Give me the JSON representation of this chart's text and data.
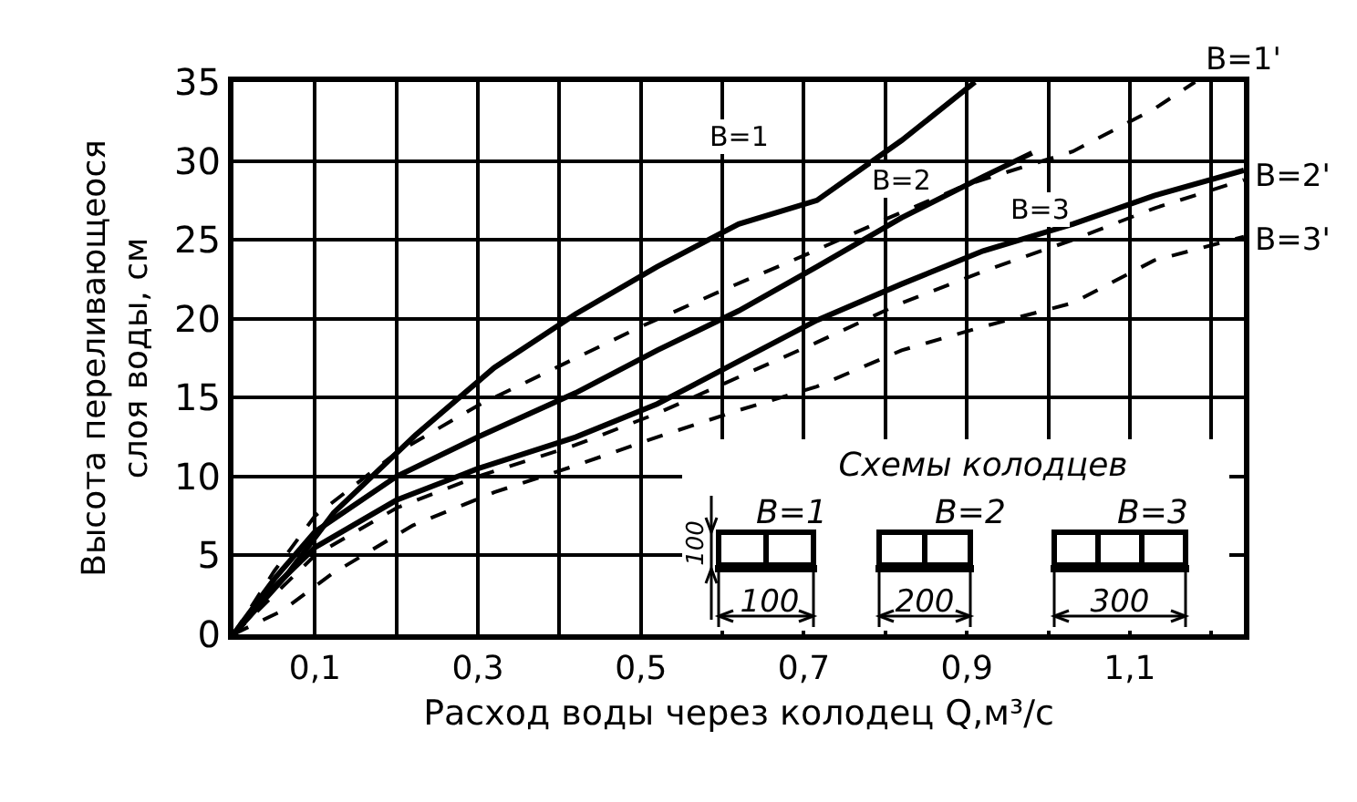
{
  "chart_data": {
    "type": "line",
    "xlabel": "Расход воды через колодец Q,м³/с",
    "ylabel": "Высота переливающеося\nслоя воды, см",
    "xlim": [
      0,
      1.24
    ],
    "ylim": [
      0,
      35
    ],
    "xticks": [
      {
        "value": 0.1,
        "label": "0,1"
      },
      {
        "value": 0.2,
        "label": null
      },
      {
        "value": 0.3,
        "label": "0,3"
      },
      {
        "value": 0.4,
        "label": null
      },
      {
        "value": 0.5,
        "label": "0,5"
      },
      {
        "value": 0.6,
        "label": null
      },
      {
        "value": 0.7,
        "label": "0,7"
      },
      {
        "value": 0.8,
        "label": null
      },
      {
        "value": 0.9,
        "label": "0,9"
      },
      {
        "value": 1.0,
        "label": null
      },
      {
        "value": 1.1,
        "label": "1,1"
      },
      {
        "value": 1.2,
        "label": null
      }
    ],
    "yticks": [
      0,
      5,
      10,
      15,
      20,
      25,
      30,
      35
    ],
    "grid": true,
    "legend": false,
    "marker": "none",
    "series": [
      {
        "name": "B=1",
        "color": "#000000",
        "line_style": "solid",
        "x": [
          0,
          0.066,
          0.123,
          0.223,
          0.32,
          0.42,
          0.52,
          0.62,
          0.716,
          0.82,
          0.91
        ],
        "values": [
          0,
          3.8,
          7.7,
          12.6,
          16.9,
          20.3,
          23.3,
          26,
          27.5,
          31.3,
          35
        ]
      },
      {
        "name": "B=2",
        "color": "#000000",
        "line_style": "solid",
        "x": [
          0,
          0.05,
          0.1,
          0.2,
          0.3,
          0.42,
          0.52,
          0.62,
          0.716,
          0.82,
          0.92,
          0.98
        ],
        "values": [
          0,
          3.5,
          6.5,
          10,
          12.5,
          15.3,
          18,
          20.5,
          23.3,
          26.4,
          29,
          30.5
        ]
      },
      {
        "name": "B=3",
        "color": "#000000",
        "line_style": "solid",
        "x": [
          0,
          0.05,
          0.1,
          0.2,
          0.3,
          0.42,
          0.52,
          0.62,
          0.716,
          0.82,
          0.92,
          1.03,
          1.13,
          1.24
        ],
        "values": [
          0,
          3,
          5.5,
          8.5,
          10.5,
          12.5,
          14.6,
          17.3,
          19.9,
          22.2,
          24.3,
          26,
          27.8,
          29.4
        ]
      },
      {
        "name": "B=1'",
        "color": "#000000",
        "line_style": "dashed",
        "x": [
          0,
          0.05,
          0.1,
          0.2,
          0.3,
          0.4,
          0.5,
          0.6,
          0.7,
          0.8,
          0.9,
          1.03,
          1.13,
          1.18
        ],
        "values": [
          0,
          4,
          7.5,
          11.5,
          14.5,
          17,
          19.5,
          21.8,
          24,
          26.3,
          28.5,
          30.6,
          33.3,
          35
        ]
      },
      {
        "name": "B=2'",
        "color": "#000000",
        "line_style": "dashed",
        "x": [
          0,
          0.05,
          0.1,
          0.2,
          0.3,
          0.42,
          0.52,
          0.62,
          0.716,
          0.82,
          0.92,
          1.03,
          1.13,
          1.24
        ],
        "values": [
          0,
          2.5,
          5,
          8,
          10,
          12,
          14,
          16.3,
          18.5,
          21,
          23,
          25,
          27,
          28.8
        ]
      },
      {
        "name": "B=3'",
        "color": "#000000",
        "line_style": "dashed",
        "x": [
          0,
          0.06,
          0.12,
          0.22,
          0.32,
          0.42,
          0.52,
          0.62,
          0.716,
          0.82,
          0.92,
          1.03,
          1.13,
          1.24
        ],
        "values": [
          0,
          1.5,
          3.8,
          6.9,
          9,
          10.7,
          12.5,
          14.2,
          15.7,
          18,
          19.5,
          21,
          23.7,
          25.2
        ]
      }
    ],
    "annotations": [
      "Схемы колодцев",
      "B=1",
      "B=2",
      "B=3",
      "100",
      "100",
      "200",
      "300"
    ]
  }
}
